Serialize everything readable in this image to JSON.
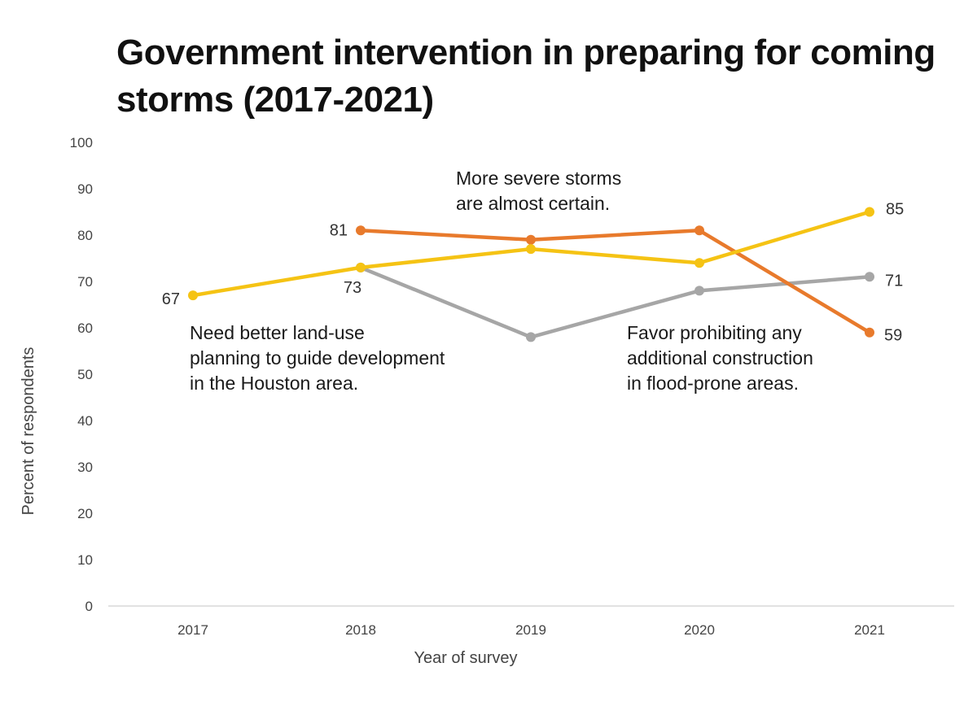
{
  "chart_data": {
    "type": "line",
    "title": "Government intervention in preparing for coming storms (2017-2021)",
    "xlabel": "Year of survey",
    "ylabel": "Percent of respondents",
    "categories": [
      "2017",
      "2018",
      "2019",
      "2020",
      "2021"
    ],
    "ylim": [
      0,
      100
    ],
    "yticks": [
      "0",
      "10",
      "20",
      "30",
      "40",
      "50",
      "60",
      "70",
      "80",
      "90",
      "100"
    ],
    "grid": false,
    "legend": "none",
    "series": [
      {
        "color": "#F5C314",
        "values": [
          67,
          73,
          77,
          74,
          85
        ],
        "point_labels": [
          "67",
          "",
          "",
          "",
          "85"
        ]
      },
      {
        "color": "#E87A2C",
        "values": [
          null,
          81,
          79,
          81,
          59
        ],
        "point_labels": [
          "",
          "81",
          "",
          "",
          "59"
        ]
      },
      {
        "color": "#A6A6A6",
        "values": [
          null,
          73,
          58,
          68,
          71
        ],
        "point_labels": [
          "",
          "73",
          "",
          "",
          "71"
        ]
      }
    ],
    "annotations": [
      {
        "lines": [
          "Need better land-use",
          "planning to guide development",
          "in the Houston area."
        ]
      },
      {
        "lines": [
          "More severe storms",
          "are almost certain."
        ]
      },
      {
        "lines": [
          "Favor prohibiting any",
          "additional construction",
          "in flood-prone areas."
        ]
      }
    ]
  }
}
